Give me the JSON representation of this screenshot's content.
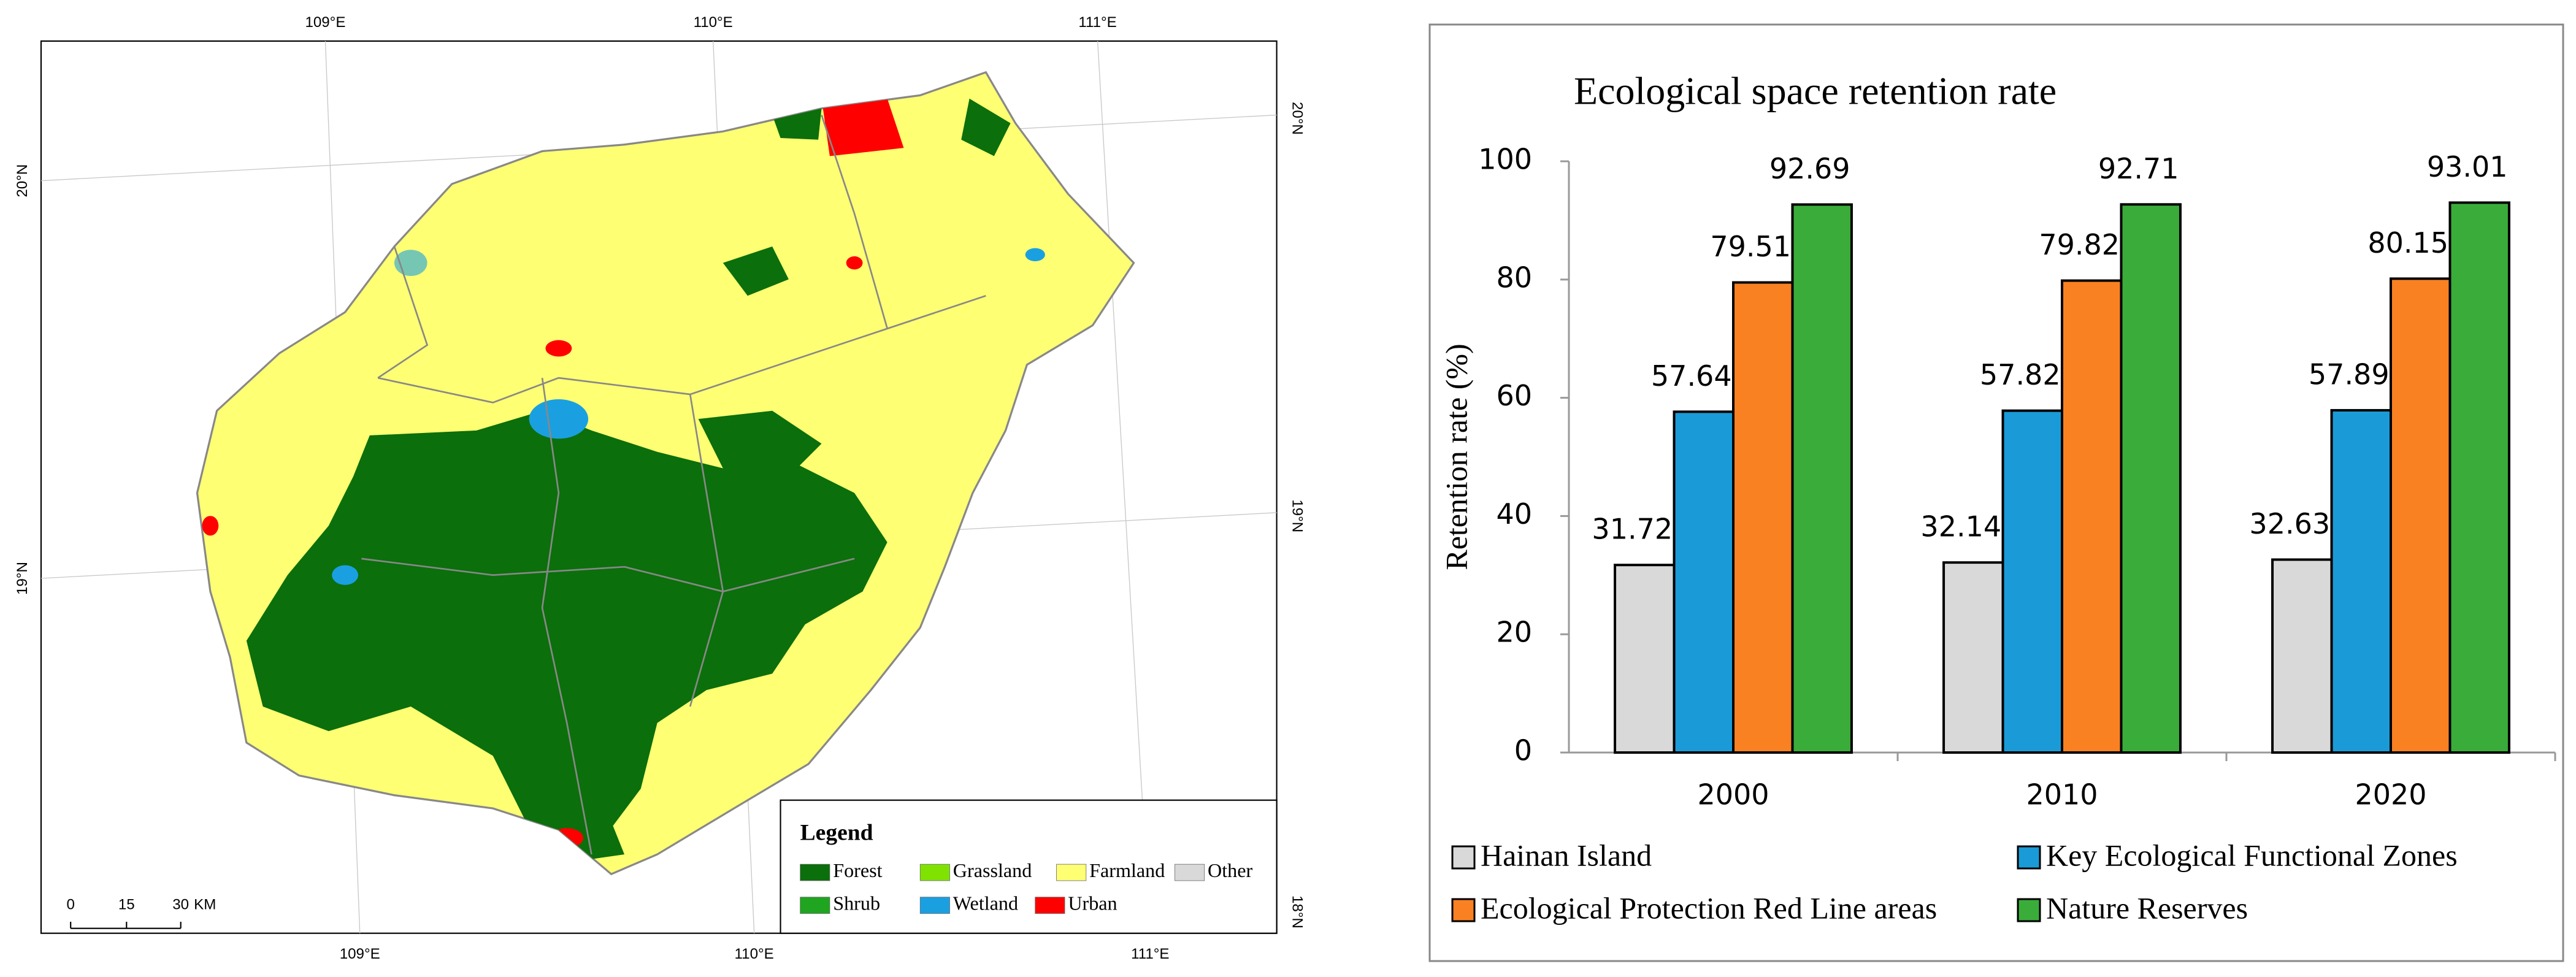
{
  "map": {
    "legend_title": "Legend",
    "legend": [
      {
        "name": "Forest",
        "color": "#0b6f0b"
      },
      {
        "name": "Grassland",
        "color": "#7fe200"
      },
      {
        "name": "Farmland",
        "color": "#ffff73"
      },
      {
        "name": "Other",
        "color": "#d9d9d9"
      },
      {
        "name": "Shrub",
        "color": "#1fa51f"
      },
      {
        "name": "Wetland",
        "color": "#1aa0e0"
      },
      {
        "name": "Urban",
        "color": "#ff0000"
      }
    ],
    "lon_labels_top": [
      "109°E",
      "110°E",
      "111°E"
    ],
    "lon_labels_bottom": [
      "109°E",
      "110°E",
      "111°E"
    ],
    "lat_labels_left": [
      "20°N",
      "19°N"
    ],
    "lat_labels_right": [
      "20°N",
      "19°N",
      "18°N"
    ],
    "scale_bar": [
      "0",
      "15",
      "30",
      "KM"
    ]
  },
  "chart_data": {
    "type": "bar",
    "title": "Ecological space retention rate",
    "ylabel": "Retention rate (%)",
    "categories": [
      "2000",
      "2010",
      "2020"
    ],
    "series": [
      {
        "name": "Hainan Island",
        "color": "#d9d9d9",
        "values": [
          31.72,
          32.14,
          32.63
        ]
      },
      {
        "name": "Key Ecological Functional Zones",
        "color": "#1a9bd7",
        "values": [
          57.64,
          57.82,
          57.89
        ]
      },
      {
        "name": "Ecological Protection Red Line areas",
        "color": "#f98122",
        "values": [
          79.51,
          79.82,
          80.15
        ]
      },
      {
        "name": "Nature Reserves",
        "color": "#3aac3a",
        "values": [
          92.69,
          92.71,
          93.01
        ]
      }
    ],
    "ylim": [
      0,
      100
    ],
    "yticks": [
      0,
      20,
      40,
      60,
      80,
      100
    ],
    "legend": "bottom"
  }
}
